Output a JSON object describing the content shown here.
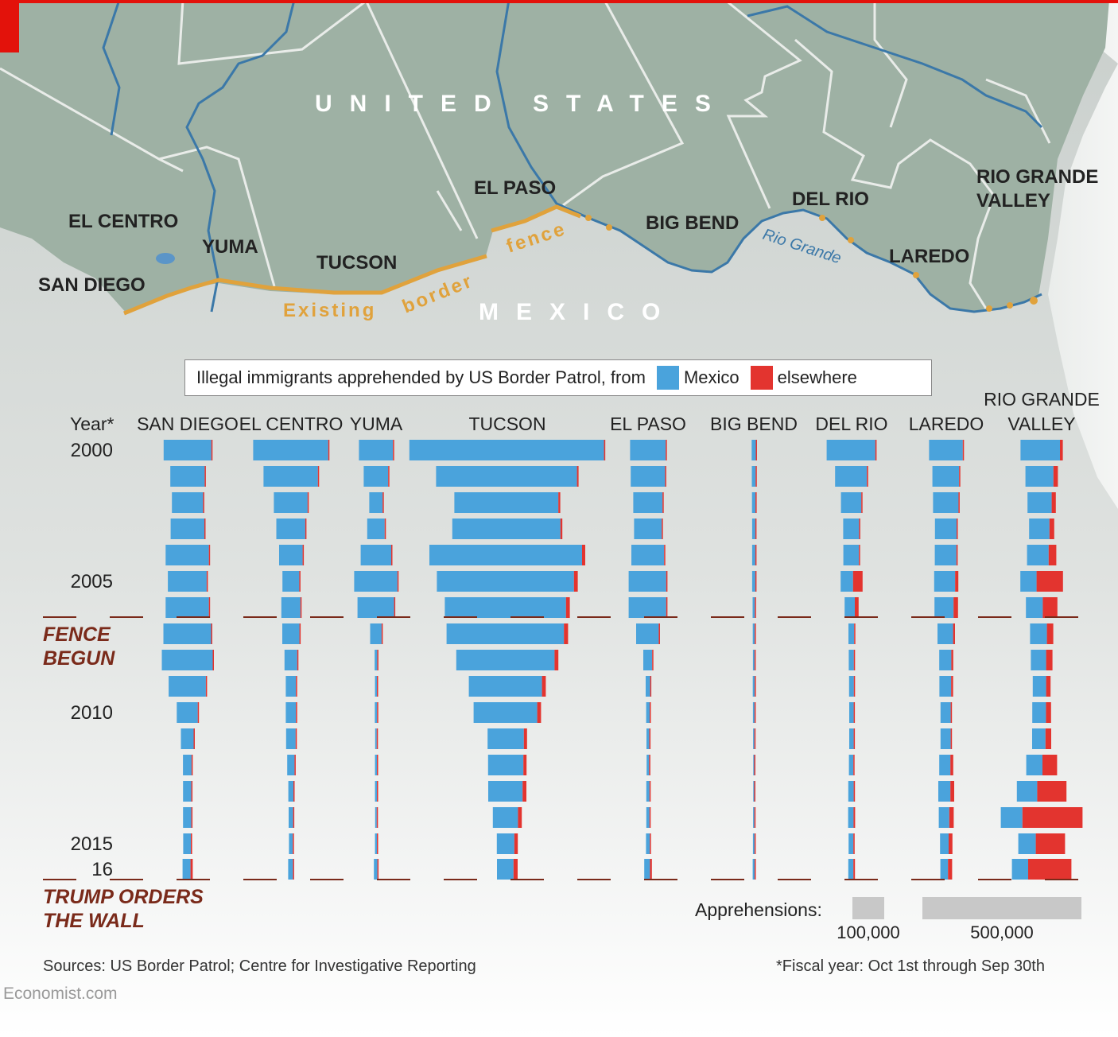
{
  "map": {
    "country_us": "UNITED STATES",
    "country_mexico": "MEXICO",
    "sectors": [
      "SAN DIEGO",
      "EL CENTRO",
      "YUMA",
      "TUCSON",
      "EL PASO",
      "BIG BEND",
      "DEL RIO",
      "LAREDO",
      "RIO GRANDE VALLEY"
    ],
    "river": "Rio Grande",
    "fence_words": [
      "Existing",
      "border",
      "fence"
    ]
  },
  "legend": {
    "title": "Illegal immigrants apprehended by US Border Patrol, from",
    "mexico": "Mexico",
    "elsewhere": "elsewhere"
  },
  "colors": {
    "mexico": "#4aa3dc",
    "elsewhere": "#e3342f",
    "fence": "#e0a23c",
    "annotation": "#7a2a1a",
    "land_us": "#9fb2a5",
    "land_mx": "#cfd3d1",
    "river": "#3b78a8"
  },
  "chart_data": {
    "type": "bar",
    "orientation": "horizontal-centered",
    "year_label": "Year*",
    "years": [
      2000,
      2001,
      2002,
      2003,
      2004,
      2005,
      2006,
      2007,
      2008,
      2009,
      2010,
      2011,
      2012,
      2013,
      2014,
      2015,
      2016
    ],
    "year_tick_labels": [
      "2000",
      "",
      "",
      "",
      "",
      "2005",
      "",
      "",
      "",
      "",
      "2010",
      "",
      "",
      "",
      "",
      "2015",
      "16"
    ],
    "series": [
      {
        "name": "SAN DIEGO",
        "mexico": [
          150000,
          108000,
          98000,
          106000,
          136000,
          122000,
          136000,
          150000,
          160000,
          117000,
          66000,
          40000,
          27000,
          26000,
          26000,
          24000,
          25000
        ],
        "elsewhere": [
          1000,
          1000,
          1000,
          1000,
          2500,
          2500,
          2500,
          2500,
          2500,
          2500,
          2500,
          2500,
          2500,
          3000,
          3000,
          4000,
          7000
        ]
      },
      {
        "name": "EL CENTRO",
        "mexico": [
          236000,
          171000,
          106000,
          91000,
          74000,
          53000,
          60000,
          54000,
          40000,
          32000,
          32000,
          30000,
          23000,
          16000,
          14000,
          12000,
          15000
        ],
        "elsewhere": [
          2000,
          2000,
          2000,
          1500,
          1000,
          1000,
          1000,
          1000,
          1000,
          1000,
          1000,
          1000,
          1000,
          1000,
          1000,
          1000,
          3000
        ]
      },
      {
        "name": "YUMA",
        "mexico": [
          107000,
          77000,
          42000,
          55000,
          96000,
          136000,
          115000,
          36000,
          8000,
          6000,
          7000,
          5000,
          6000,
          6000,
          5000,
          6000,
          11000
        ],
        "elsewhere": [
          1000,
          1000,
          1000,
          1000,
          1000,
          2000,
          2000,
          1500,
          1000,
          1000,
          1000,
          1000,
          1000,
          1000,
          1000,
          1000,
          3000
        ]
      },
      {
        "name": "TUCSON",
        "mexico": [
          612000,
          443000,
          327000,
          340000,
          480000,
          431000,
          381000,
          369000,
          309000,
          230000,
          200000,
          114000,
          111000,
          108000,
          79000,
          55000,
          52000
        ],
        "elsewhere": [
          4000,
          5000,
          6000,
          6000,
          10000,
          12000,
          12000,
          13000,
          12000,
          12000,
          12000,
          10000,
          10000,
          12000,
          12000,
          11000,
          13000
        ]
      },
      {
        "name": "EL PASO",
        "mexico": [
          112000,
          108000,
          92000,
          87000,
          103000,
          118000,
          118000,
          71000,
          28000,
          14000,
          11000,
          9000,
          8000,
          10000,
          10000,
          12000,
          18000
        ],
        "elsewhere": [
          1000,
          1000,
          1000,
          1000,
          2000,
          4000,
          4000,
          4000,
          2000,
          1000,
          1000,
          1000,
          1000,
          1000,
          1000,
          1000,
          6000
        ]
      },
      {
        "name": "BIG BEND",
        "mexico": [
          13000,
          12000,
          11000,
          10000,
          10000,
          10000,
          7000,
          6000,
          5000,
          6000,
          5000,
          4000,
          3000,
          3000,
          4000,
          5000,
          6000
        ],
        "elsewhere": [
          500,
          500,
          500,
          500,
          500,
          500,
          500,
          500,
          500,
          500,
          500,
          500,
          500,
          500,
          500,
          500,
          1000
        ]
      },
      {
        "name": "DEL RIO",
        "mexico": [
          153000,
          100000,
          64000,
          50000,
          49000,
          39000,
          32000,
          18000,
          16000,
          15000,
          14000,
          14000,
          14000,
          17000,
          17000,
          15000,
          16000
        ],
        "elsewhere": [
          4000,
          4000,
          3000,
          3000,
          3000,
          30000,
          12000,
          2000,
          2000,
          1000,
          1000,
          1000,
          3000,
          4000,
          5000,
          4000,
          5000
        ]
      },
      {
        "name": "LAREDO",
        "mexico": [
          106000,
          84000,
          80000,
          68000,
          68000,
          66000,
          60000,
          49000,
          38000,
          37000,
          32000,
          32000,
          35000,
          38000,
          33000,
          27000,
          24000
        ],
        "elsewhere": [
          2000,
          3000,
          3000,
          3000,
          4000,
          10000,
          14000,
          6000,
          6000,
          6000,
          4000,
          4000,
          9000,
          12000,
          14000,
          12000,
          13000
        ]
      },
      {
        "name": "RIO GRANDE VALLEY",
        "mexico": [
          124000,
          88000,
          76000,
          64000,
          68000,
          51000,
          53000,
          53000,
          48000,
          42000,
          43000,
          42000,
          51000,
          64000,
          68000,
          55000,
          51000
        ],
        "elsewhere": [
          9000,
          14000,
          13000,
          15000,
          24000,
          83000,
          46000,
          20000,
          20000,
          14000,
          16000,
          18000,
          46000,
          92000,
          189000,
          92000,
          136000
        ]
      }
    ],
    "annotations": [
      {
        "after_year": 2006,
        "text_lines": [
          "FENCE",
          "BEGUN"
        ]
      },
      {
        "after_year": 2016,
        "text_lines": [
          "TRUMP ORDERS",
          "THE WALL"
        ]
      }
    ],
    "scale_legend": {
      "label": "Apprehensions:",
      "values": [
        100000,
        500000
      ],
      "value_labels": [
        "100,000",
        "500,000"
      ]
    }
  },
  "sources": "Sources: US Border Patrol; Centre for Investigative Reporting",
  "footnote": "*Fiscal year: Oct 1st through Sep 30th",
  "brand": "Economist.com"
}
